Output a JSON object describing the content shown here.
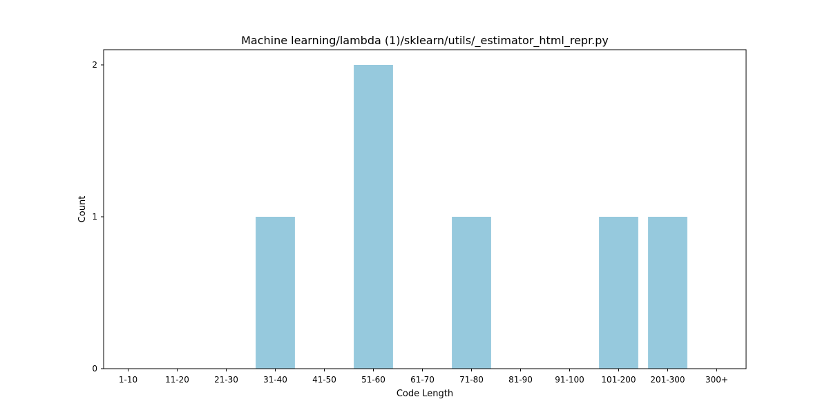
{
  "chart_data": {
    "type": "bar",
    "title": "Machine learning/lambda (1)/sklearn/utils/_estimator_html_repr.py",
    "xlabel": "Code Length",
    "ylabel": "Count",
    "categories": [
      "1-10",
      "11-20",
      "21-30",
      "31-40",
      "41-50",
      "51-60",
      "61-70",
      "71-80",
      "81-90",
      "91-100",
      "101-200",
      "201-300",
      "300+"
    ],
    "values": [
      0,
      0,
      0,
      1,
      0,
      2,
      0,
      1,
      0,
      0,
      1,
      1,
      0
    ],
    "ylim": [
      0,
      2.1
    ],
    "yticks": [
      0,
      1,
      2
    ],
    "grid": false,
    "bar_color": "#96c9dd"
  }
}
